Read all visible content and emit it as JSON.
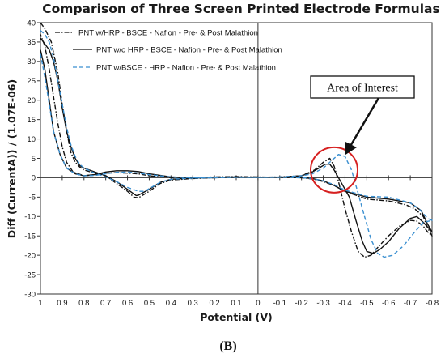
{
  "chart_data": {
    "type": "line",
    "title": "Comparison of Three Screen Printed Electrode Formulas",
    "xlabel": "Potential (V)",
    "ylabel": "Diff (CurrentA)) / (1.07E-06)",
    "x_reversed": true,
    "xlim": [
      1,
      -0.8
    ],
    "ylim": [
      -30,
      40
    ],
    "x_ticks": [
      1,
      0.9,
      0.8,
      0.7,
      0.6,
      0.5,
      0.4,
      0.3,
      0.2,
      0.1,
      0,
      -0.1,
      -0.2,
      -0.3,
      -0.4,
      -0.5,
      -0.6,
      -0.7,
      -0.8
    ],
    "x_tick_labels": [
      "1",
      "0.9",
      "0.8",
      "0.7",
      "0.6",
      "0.5",
      "0.4",
      "0.3",
      "0.2",
      "0.1",
      "0",
      "-0.1",
      "-0.2",
      "-0.3",
      "-0.4",
      "-0.5",
      "-0.6",
      "-0.7",
      "-0.8"
    ],
    "y_ticks": [
      40,
      35,
      30,
      25,
      20,
      15,
      10,
      5,
      0,
      -5,
      -10,
      -15,
      -20,
      -25,
      -30
    ],
    "y_tick_labels": [
      "40",
      "35",
      "30",
      "25",
      "20",
      "15",
      "10",
      "5",
      "0",
      "-5",
      "-10",
      "-15",
      "-20",
      "-25",
      "-30"
    ],
    "grid": false,
    "legend_position": "top-left",
    "series": [
      {
        "name": "PNT w/HRP - BSCE - Nafion - Pre- & Post Malathion",
        "color": "#111111",
        "dash": "dash-dot",
        "x": [
          1.0,
          0.98,
          0.95,
          0.92,
          0.9,
          0.88,
          0.86,
          0.84,
          0.82,
          0.8,
          0.75,
          0.7,
          0.65,
          0.6,
          0.57,
          0.55,
          0.5,
          0.45,
          0.4,
          0.3,
          0.2,
          0.1,
          0.0,
          -0.1,
          -0.2,
          -0.26,
          -0.3,
          -0.33,
          -0.35,
          -0.37,
          -0.4,
          -0.43,
          -0.46,
          -0.49,
          -0.52,
          -0.55,
          -0.6,
          -0.65,
          -0.7,
          -0.73,
          -0.76,
          -0.78,
          -0.8,
          -0.78,
          -0.76,
          -0.72,
          -0.68,
          -0.6,
          -0.5,
          -0.45,
          -0.4,
          -0.35,
          -0.3,
          -0.25,
          -0.2,
          -0.1,
          0.0,
          0.1,
          0.2,
          0.3,
          0.4,
          0.5,
          0.55,
          0.6,
          0.65,
          0.7,
          0.75,
          0.8,
          0.85,
          0.88,
          0.9,
          0.92,
          0.94,
          0.96,
          0.98,
          1.0
        ],
        "y": [
          40.0,
          38.5,
          35.0,
          27.0,
          19.0,
          12.0,
          6.5,
          4.0,
          2.8,
          2.0,
          1.2,
          0.5,
          -1.5,
          -3.5,
          -5.0,
          -5.2,
          -3.5,
          -1.5,
          -0.6,
          -0.2,
          0.0,
          0.1,
          0.1,
          0.2,
          0.5,
          2.0,
          4.0,
          5.0,
          3.0,
          -1.0,
          -8.0,
          -14.0,
          -19.0,
          -20.5,
          -20.0,
          -18.0,
          -15.0,
          -12.5,
          -11.0,
          -11.2,
          -12.5,
          -14.0,
          -15.0,
          -13.0,
          -10.0,
          -8.0,
          -7.0,
          -6.0,
          -5.5,
          -4.5,
          -3.5,
          -2.0,
          -1.0,
          -0.3,
          0.0,
          0.1,
          0.2,
          0.3,
          0.2,
          0.0,
          0.0,
          0.5,
          1.0,
          1.2,
          1.3,
          1.2,
          0.8,
          0.5,
          1.5,
          4.0,
          8.0,
          14.0,
          21.0,
          28.0,
          34.0,
          37.0
        ]
      },
      {
        "name": "PNT w/o HRP - BSCE - Nafion - Pre- & Post Malathion",
        "color": "#111111",
        "dash": "solid",
        "x": [
          1.0,
          0.98,
          0.96,
          0.94,
          0.92,
          0.9,
          0.88,
          0.86,
          0.84,
          0.82,
          0.8,
          0.75,
          0.7,
          0.65,
          0.6,
          0.56,
          0.55,
          0.5,
          0.45,
          0.4,
          0.3,
          0.2,
          0.1,
          0.0,
          -0.1,
          -0.2,
          -0.25,
          -0.28,
          -0.31,
          -0.33,
          -0.35,
          -0.38,
          -0.42,
          -0.45,
          -0.48,
          -0.5,
          -0.53,
          -0.56,
          -0.6,
          -0.65,
          -0.7,
          -0.73,
          -0.76,
          -0.8,
          -0.78,
          -0.75,
          -0.7,
          -0.6,
          -0.5,
          -0.45,
          -0.4,
          -0.35,
          -0.3,
          -0.25,
          -0.2,
          -0.1,
          0.0,
          0.1,
          0.2,
          0.3,
          0.4,
          0.5,
          0.55,
          0.6,
          0.65,
          0.7,
          0.75,
          0.8,
          0.84,
          0.88,
          0.91,
          0.94,
          0.96,
          0.98,
          1.0
        ],
        "y": [
          36.0,
          34.5,
          33.0,
          30.0,
          25.0,
          18.0,
          12.0,
          8.0,
          5.0,
          3.2,
          2.5,
          1.5,
          0.5,
          -1.0,
          -3.0,
          -4.6,
          -4.5,
          -3.0,
          -1.2,
          -0.4,
          -0.1,
          0.0,
          0.1,
          0.1,
          0.1,
          0.5,
          1.5,
          2.5,
          3.5,
          3.5,
          2.0,
          -1.0,
          -5.0,
          -11.0,
          -16.5,
          -19.0,
          -19.5,
          -18.5,
          -16.5,
          -13.0,
          -10.5,
          -10.0,
          -11.5,
          -14.0,
          -12.0,
          -8.5,
          -6.5,
          -5.5,
          -5.0,
          -4.2,
          -3.5,
          -2.0,
          -0.8,
          -0.2,
          0.0,
          0.1,
          0.1,
          0.2,
          0.1,
          0.0,
          0.2,
          1.0,
          1.6,
          1.8,
          1.8,
          1.5,
          0.8,
          0.5,
          1.0,
          2.5,
          6.0,
          12.0,
          20.0,
          28.0,
          33.0
        ]
      },
      {
        "name": "PNT w/BSCE - HRP - Nafion - Pre- & Post Malathion",
        "color": "#3a8fd0",
        "dash": "dashed",
        "x": [
          1.0,
          0.98,
          0.96,
          0.94,
          0.92,
          0.9,
          0.88,
          0.86,
          0.84,
          0.82,
          0.8,
          0.75,
          0.7,
          0.65,
          0.6,
          0.55,
          0.52,
          0.5,
          0.45,
          0.4,
          0.3,
          0.2,
          0.1,
          0.0,
          -0.1,
          -0.2,
          -0.25,
          -0.3,
          -0.34,
          -0.37,
          -0.4,
          -0.43,
          -0.46,
          -0.49,
          -0.52,
          -0.55,
          -0.58,
          -0.62,
          -0.67,
          -0.72,
          -0.76,
          -0.8,
          -0.78,
          -0.74,
          -0.7,
          -0.6,
          -0.5,
          -0.45,
          -0.4,
          -0.35,
          -0.3,
          -0.25,
          -0.2,
          -0.1,
          0.0,
          0.1,
          0.2,
          0.3,
          0.4,
          0.5,
          0.55,
          0.6,
          0.65,
          0.7,
          0.75,
          0.8,
          0.84,
          0.88,
          0.91,
          0.94,
          0.96,
          0.98,
          1.0
        ],
        "y": [
          38.0,
          37.0,
          35.0,
          31.0,
          25.0,
          19.0,
          13.0,
          8.5,
          5.5,
          3.5,
          2.5,
          1.2,
          0.2,
          -1.0,
          -2.5,
          -3.5,
          -3.5,
          -2.8,
          -1.2,
          -0.4,
          -0.1,
          0.0,
          0.1,
          0.1,
          0.2,
          0.5,
          1.0,
          2.5,
          4.5,
          6.0,
          5.5,
          2.0,
          -4.0,
          -10.0,
          -16.0,
          -19.5,
          -20.5,
          -20.0,
          -17.5,
          -14.0,
          -11.5,
          -11.0,
          -10.5,
          -8.0,
          -6.5,
          -5.0,
          -4.8,
          -4.0,
          -3.2,
          -1.8,
          -0.8,
          -0.2,
          0.0,
          0.1,
          0.1,
          0.2,
          0.1,
          0.0,
          0.2,
          0.8,
          1.2,
          1.5,
          1.4,
          1.0,
          0.6,
          0.5,
          1.0,
          2.5,
          6.0,
          12.0,
          19.0,
          26.0,
          32.0
        ]
      }
    ],
    "annotations": [
      {
        "text": "Area of Interest",
        "kind": "callout-box-with-arrow",
        "target_x": -0.33,
        "target_y": 3.0
      },
      {
        "text": "",
        "kind": "circle-highlight",
        "center_x": -0.35,
        "center_y": 2.0,
        "color": "#d62020"
      }
    ]
  },
  "panel_label": "(B)"
}
